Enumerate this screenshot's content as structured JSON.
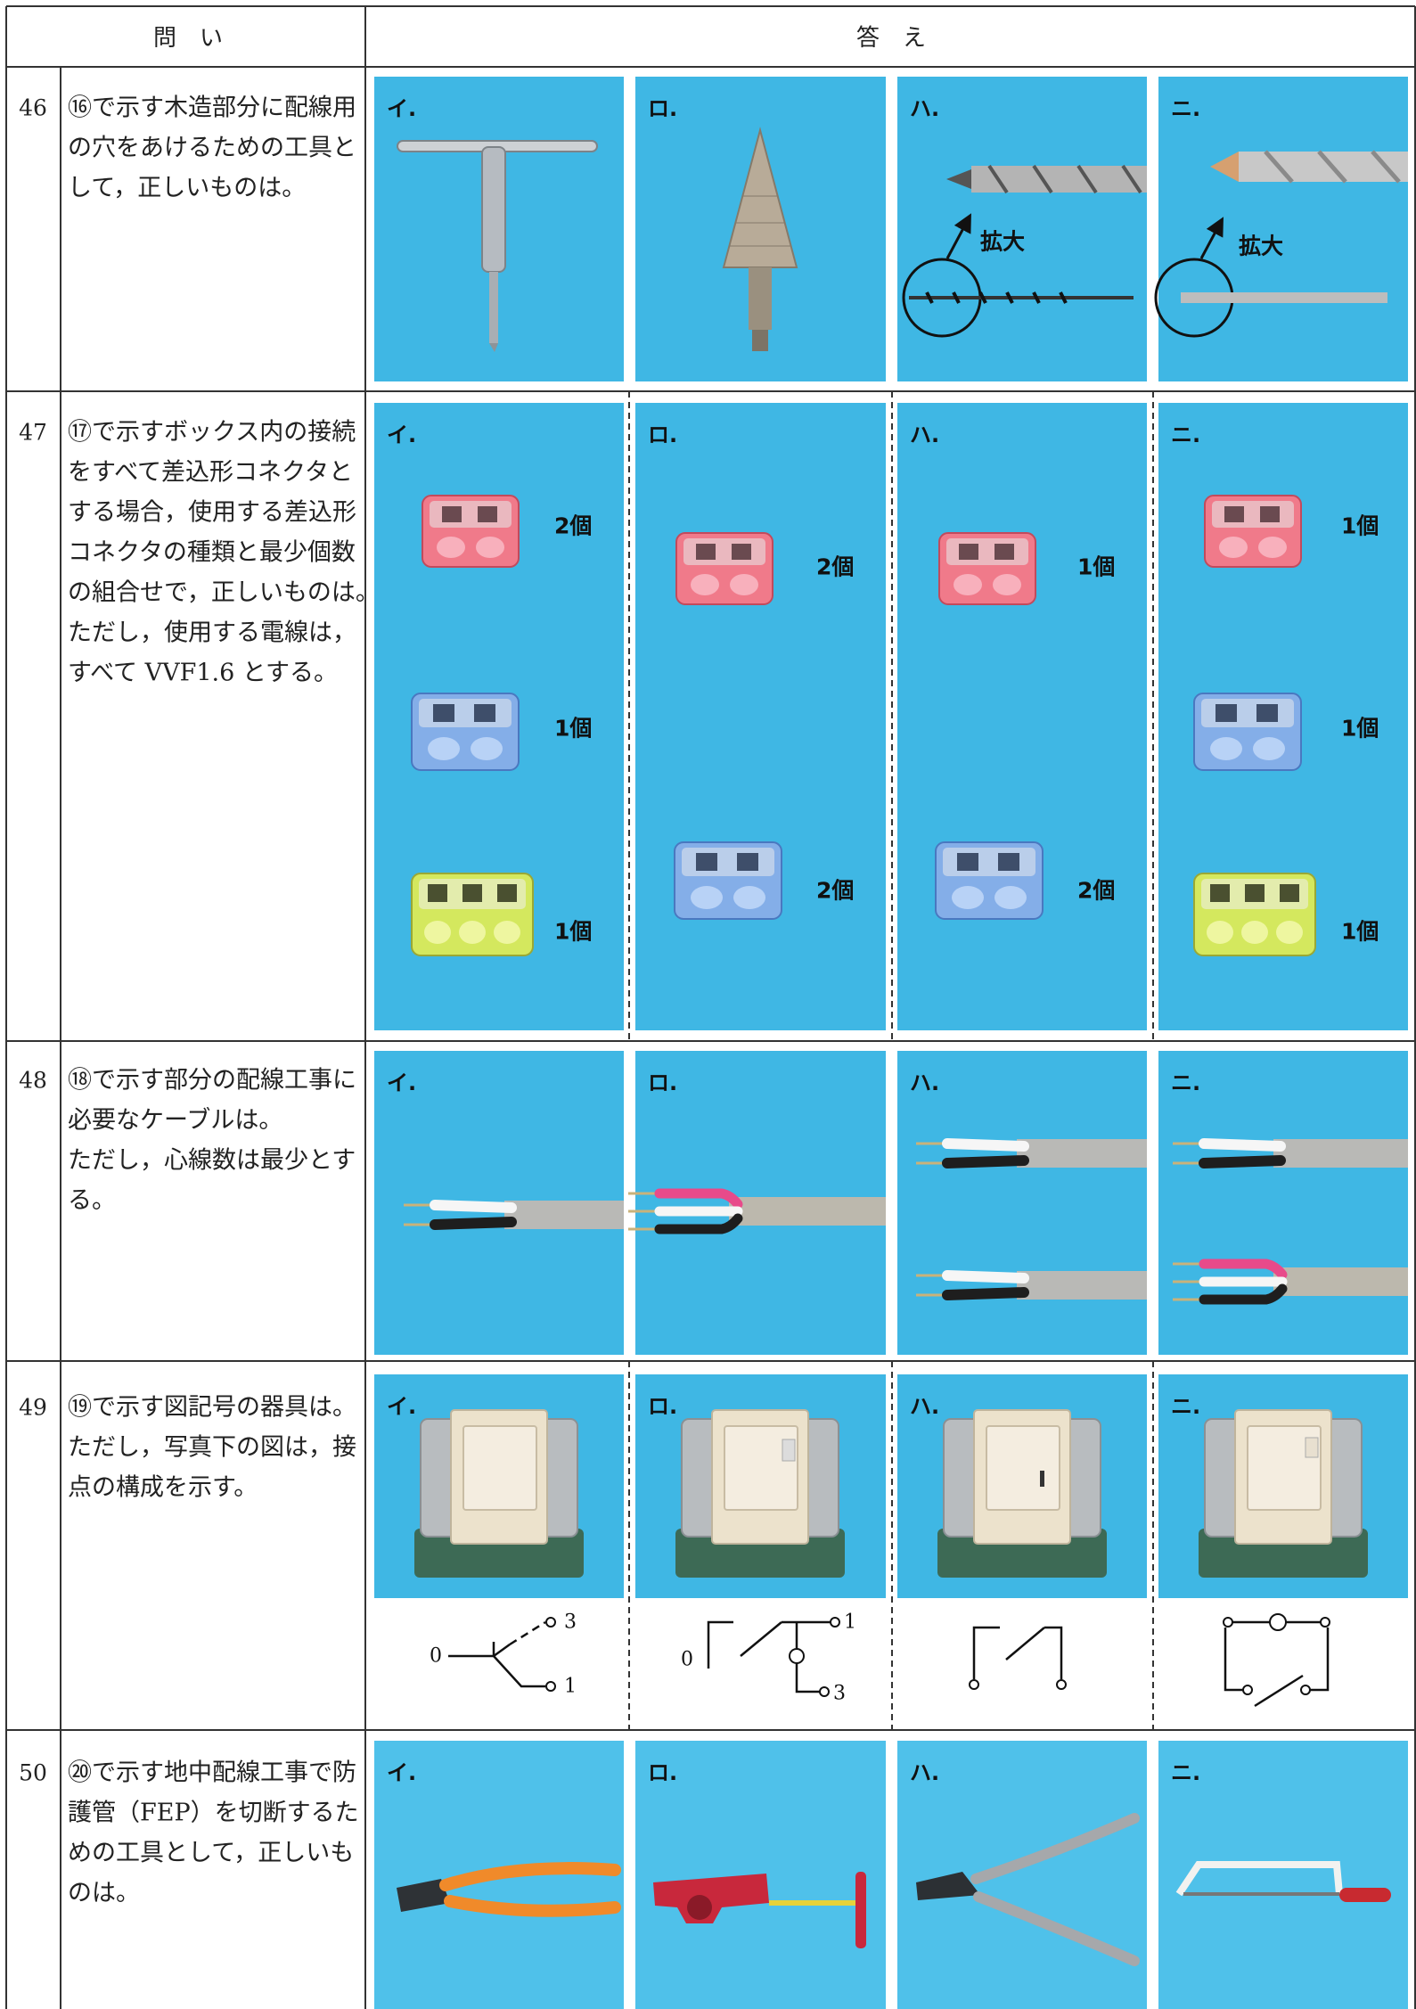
{
  "header": {
    "question": "問　い",
    "answer": "答　え"
  },
  "rows": [
    {
      "number": "46",
      "question": [
        "⑯で示す木造部分に配線用",
        "の穴をあけるための工具と",
        "して，正しいものは。"
      ],
      "options": [
        {
          "label": "イ."
        },
        {
          "label": "ロ."
        },
        {
          "label": "ハ.",
          "note": "拡大"
        },
        {
          "label": "ニ.",
          "note": "拡大"
        }
      ]
    },
    {
      "number": "47",
      "question": [
        "⑰で示すボックス内の接続",
        "をすべて差込形コネクタと",
        "する場合，使用する差込形",
        "コネクタの種類と最少個数",
        "の組合せで，正しいものは。",
        "ただし，使用する電線は，",
        "すべて VVF1.6 とする。"
      ],
      "options": [
        {
          "label": "イ.",
          "counts": [
            "2個",
            "1個",
            "1個"
          ]
        },
        {
          "label": "ロ.",
          "counts": [
            "2個",
            "2個"
          ]
        },
        {
          "label": "ハ.",
          "counts": [
            "1個",
            "2個"
          ]
        },
        {
          "label": "ニ.",
          "counts": [
            "1個",
            "1個",
            "1個"
          ]
        }
      ]
    },
    {
      "number": "48",
      "question": [
        "⑱で示す部分の配線工事に",
        "必要なケーブルは。",
        "ただし，心線数は最少とす",
        "る。"
      ],
      "options": [
        {
          "label": "イ."
        },
        {
          "label": "ロ."
        },
        {
          "label": "ハ."
        },
        {
          "label": "ニ."
        }
      ]
    },
    {
      "number": "49",
      "question": [
        "⑲で示す図記号の器具は。",
        "ただし，写真下の図は，接",
        "点の構成を示す。"
      ],
      "options": [
        {
          "label": "イ.",
          "terminals": [
            "0",
            "3",
            "1"
          ]
        },
        {
          "label": "ロ.",
          "terminals": [
            "0",
            "1",
            "3"
          ]
        },
        {
          "label": "ハ."
        },
        {
          "label": "ニ."
        }
      ]
    },
    {
      "number": "50",
      "question": [
        "⑳で示す地中配線工事で防",
        "護管（FEP）を切断するた",
        "めの工具として，正しいも",
        "のは。"
      ],
      "options": [
        {
          "label": "イ."
        },
        {
          "label": "ロ."
        },
        {
          "label": "ハ."
        },
        {
          "label": "ニ."
        }
      ]
    }
  ]
}
